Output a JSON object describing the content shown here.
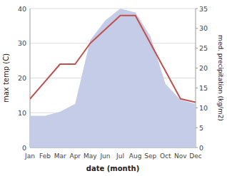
{
  "chart_data": {
    "type": "line",
    "xlabel": "date (month)",
    "ylabel": "max temp (C)",
    "y2label": "med. precipitation (kg/m2)",
    "categories": [
      "Jan",
      "Feb",
      "Mar",
      "Apr",
      "May",
      "Jun",
      "Jul",
      "Aug",
      "Sep",
      "Oct",
      "Nov",
      "Dec"
    ],
    "series": [
      {
        "type": "area",
        "axis": "y2",
        "color": "#c5cce8",
        "values": [
          8,
          8,
          9,
          11,
          27,
          32,
          35,
          34,
          28,
          16,
          12,
          11
        ]
      },
      {
        "type": "line",
        "color": "#c0504d",
        "values": [
          14,
          19,
          24,
          24,
          30,
          34,
          38,
          38,
          30,
          22,
          14,
          13
        ]
      }
    ],
    "ylim": [
      0,
      40
    ],
    "yticks": [
      0,
      10,
      20,
      30,
      40
    ],
    "y2lim": [
      0,
      35
    ],
    "y2ticks": [
      0,
      5,
      10,
      15,
      20,
      25,
      30,
      35
    ],
    "grid": true
  }
}
